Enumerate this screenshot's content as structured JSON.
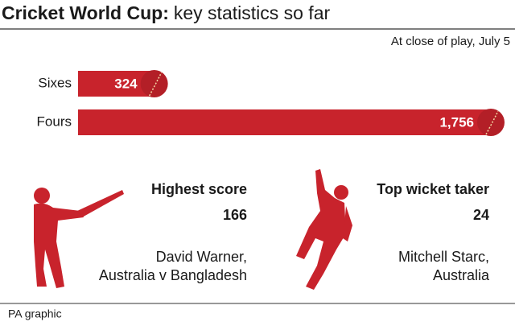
{
  "chart_data": {
    "type": "hbar",
    "title": "Cricket World Cup:",
    "subtitle": "key statistics so far",
    "note": "At close of play, July 5",
    "categories": [
      "Sixes",
      "Fours"
    ],
    "values": [
      324,
      1756
    ],
    "value_labels": [
      "324",
      "1,756"
    ],
    "color": "#c8232c"
  },
  "stats": [
    {
      "heading": "Highest score",
      "value": 166,
      "lines": [
        "David Warner,",
        "Australia v Bangladesh"
      ]
    },
    {
      "heading": "Top wicket taker",
      "value": 24,
      "lines": [
        "Mitchell Starc,",
        "Australia"
      ]
    }
  ],
  "footer": "PA graphic"
}
